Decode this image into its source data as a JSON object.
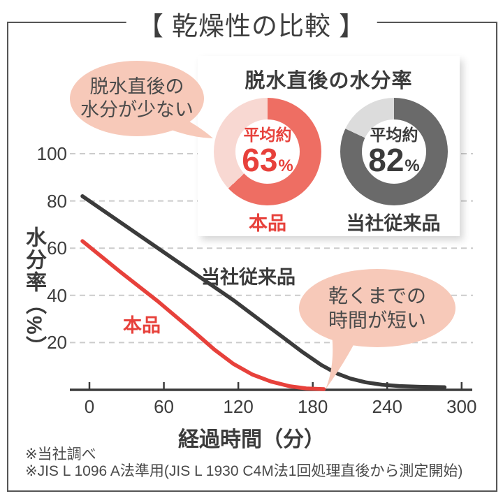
{
  "title": "【 乾燥性の比較 】",
  "inset": {
    "title": "脱水直後の水分率",
    "donuts": [
      {
        "label": "本品",
        "prefix": "平均約",
        "value": "63",
        "unit": "%",
        "pct": 63,
        "fill_color": "#ee6e63",
        "rest_color": "#f8d8d2",
        "text_color": "#e7413b"
      },
      {
        "label": "当社従来品",
        "prefix": "平均約",
        "value": "82",
        "unit": "%",
        "pct": 82,
        "fill_color": "#6a6a6a",
        "rest_color": "#dcdcdc",
        "text_color": "#3b3b3b"
      }
    ]
  },
  "bubbles": [
    {
      "lines": [
        "脱水直後の",
        "水分が少ない"
      ]
    },
    {
      "lines": [
        "乾くまでの",
        "時間が短い"
      ]
    }
  ],
  "chart_data": {
    "type": "line",
    "title": "乾燥性の比較",
    "xlabel": "経過時間（分）",
    "ylabel": "水分率（%）",
    "xlim": [
      0,
      300
    ],
    "ylim": [
      0,
      100
    ],
    "x_ticks": [
      0,
      60,
      120,
      180,
      240,
      300
    ],
    "y_ticks": [
      20,
      40,
      60,
      80,
      100
    ],
    "grid": "dashed-horizontal",
    "legend_position": "inline-labels",
    "series": [
      {
        "name": "本品",
        "color": "#e7413b",
        "points": [
          [
            0,
            63
          ],
          [
            30,
            50
          ],
          [
            60,
            37.5
          ],
          [
            90,
            24
          ],
          [
            105,
            17
          ],
          [
            120,
            11
          ],
          [
            135,
            6.5
          ],
          [
            150,
            3.5
          ],
          [
            165,
            1.5
          ],
          [
            178,
            0.6
          ],
          [
            192,
            0.3
          ]
        ]
      },
      {
        "name": "当社従来品",
        "color": "#3b3b3b",
        "points": [
          [
            0,
            82
          ],
          [
            30,
            71
          ],
          [
            60,
            60
          ],
          [
            90,
            49
          ],
          [
            120,
            38
          ],
          [
            145,
            28
          ],
          [
            160,
            22
          ],
          [
            175,
            16
          ],
          [
            190,
            10.5
          ],
          [
            202,
            7
          ],
          [
            213,
            4.8
          ],
          [
            225,
            3.2
          ],
          [
            238,
            2.2
          ],
          [
            252,
            1.6
          ],
          [
            268,
            1.3
          ],
          [
            288,
            1.1
          ]
        ]
      }
    ],
    "colors": {
      "grid": "#cbcbcb",
      "axis": "#3b3b3b"
    }
  },
  "footnotes": [
    "※当社調べ",
    "※JIS L 1096 A法準用(JIS L 1930 C4M法1回処理直後から測定開始)"
  ]
}
